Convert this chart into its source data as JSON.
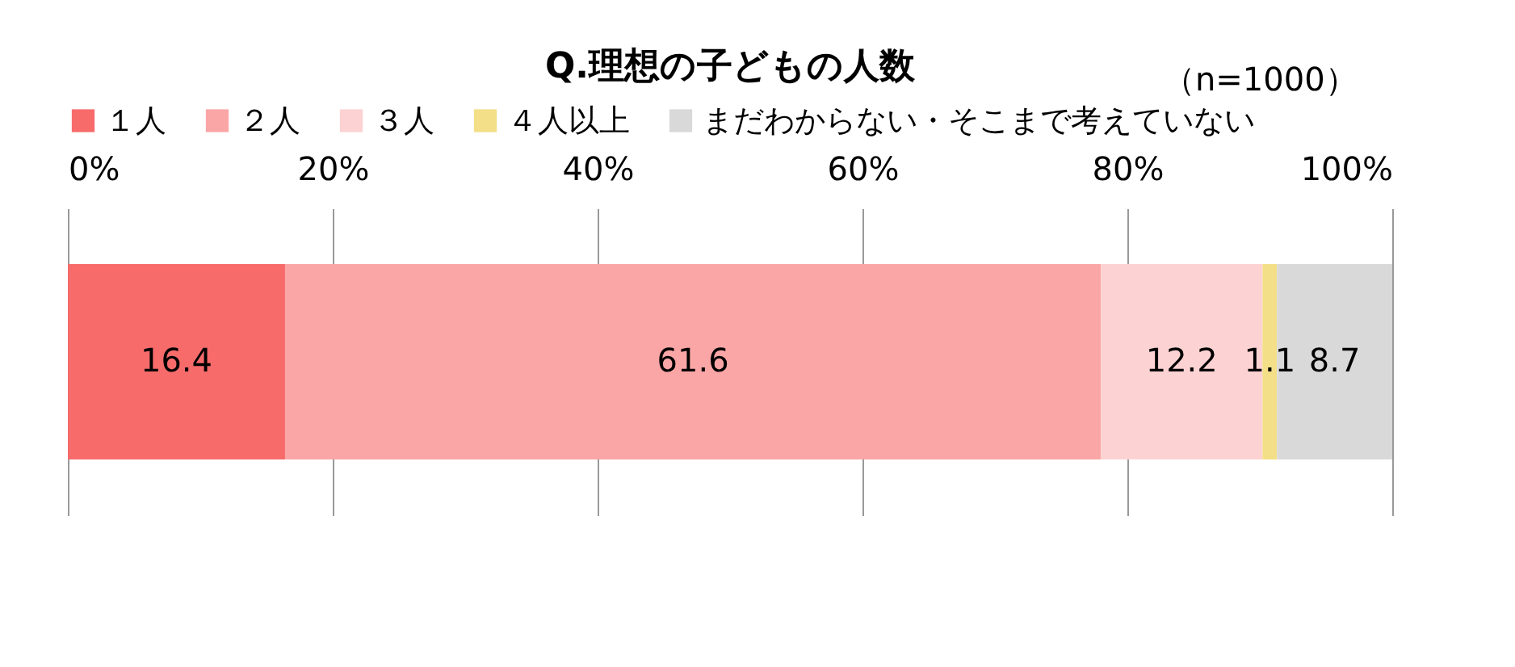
{
  "chart_data": {
    "type": "bar",
    "title": "Q.理想の子どもの人数",
    "annotations": [
      "（n=1000）"
    ],
    "orientation": "horizontal",
    "stacked": true,
    "categories": [
      null
    ],
    "series": [
      {
        "name": "１人",
        "color": "#f76b6b",
        "values": [
          16.4
        ]
      },
      {
        "name": "２人",
        "color": "#fba6a6",
        "values": [
          61.6
        ]
      },
      {
        "name": "３人",
        "color": "#fdd2d2",
        "values": [
          12.2
        ]
      },
      {
        "name": "４人以上",
        "color": "#f3df87",
        "values": [
          1.1
        ]
      },
      {
        "name": "まだわからない・そこまで考えていない",
        "color": "#d9d9d9",
        "values": [
          8.7
        ]
      }
    ],
    "xlim": [
      0,
      100
    ],
    "xticks": [
      {
        "value": 0,
        "label": "0%"
      },
      {
        "value": 20,
        "label": "20%"
      },
      {
        "value": 40,
        "label": "40%"
      },
      {
        "value": 60,
        "label": "60%"
      },
      {
        "value": 80,
        "label": "80%"
      },
      {
        "value": 100,
        "label": "100%"
      }
    ],
    "grid": "x",
    "legend": "top",
    "data_labels": true
  }
}
